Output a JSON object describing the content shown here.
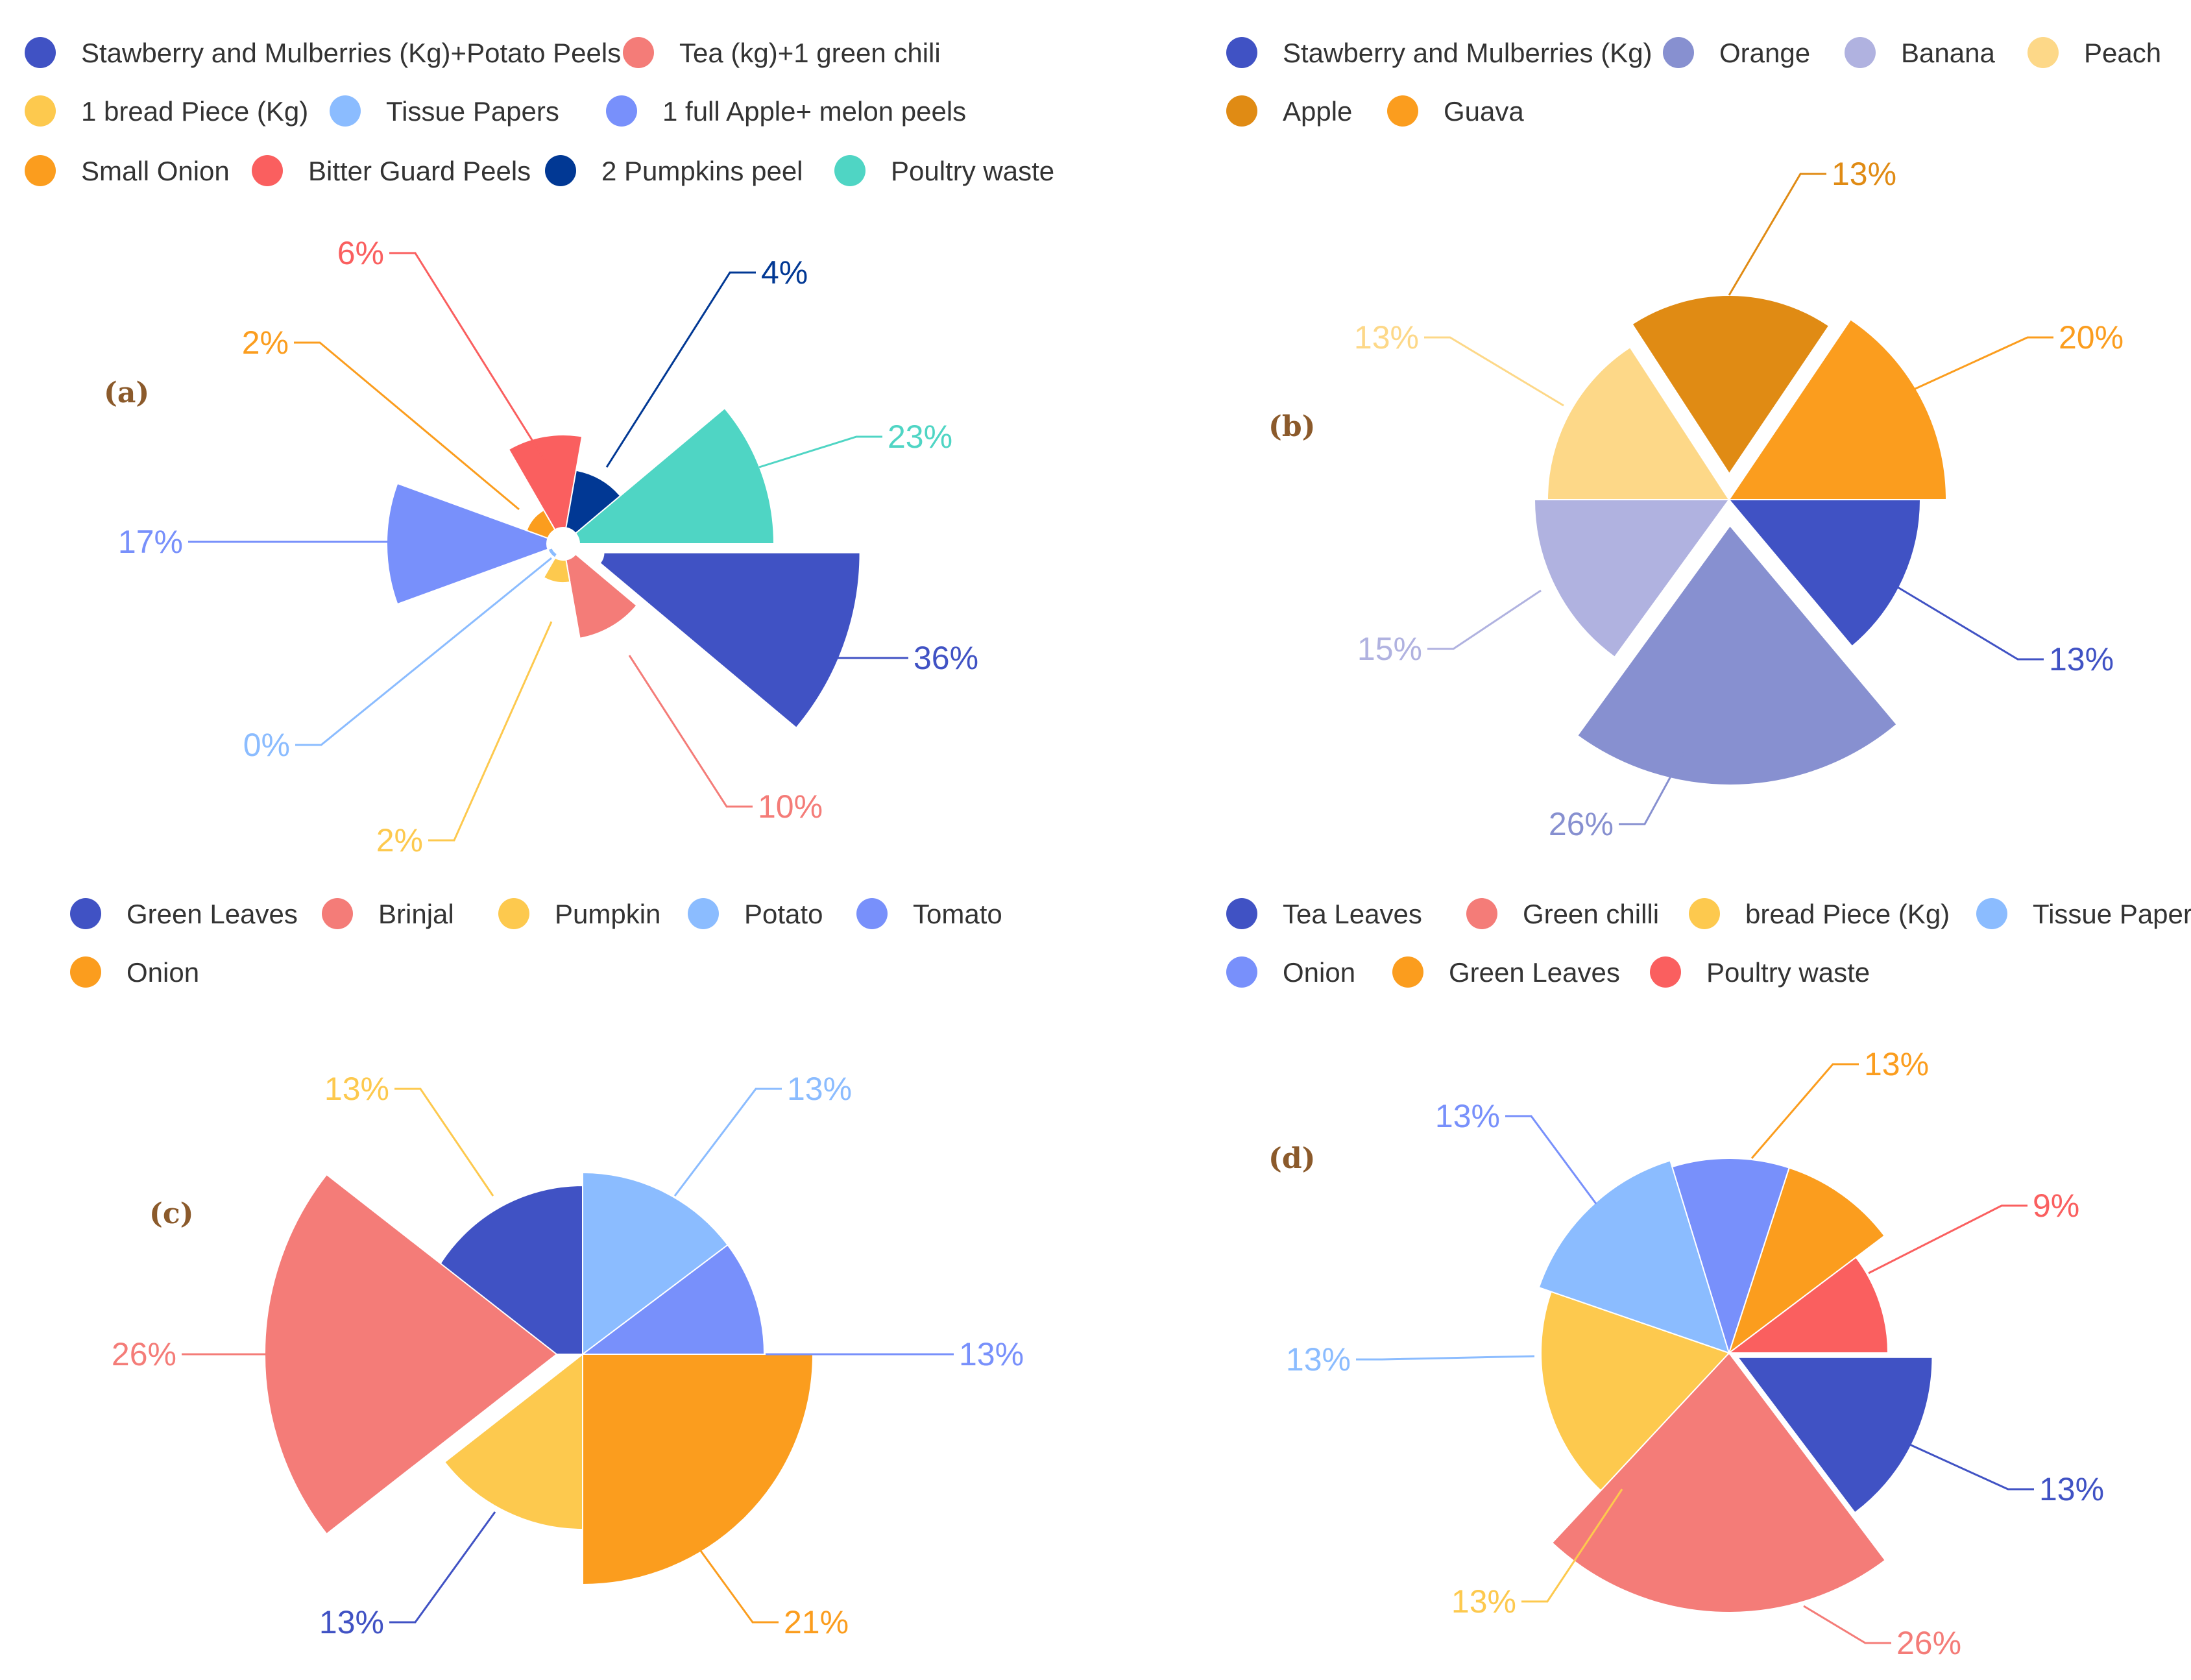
{
  "chart_data": [
    {
      "type": "pie",
      "variant": "nightingale-rose",
      "panel_label": "(a)",
      "legend": [
        "Stawberry and Mulberries (Kg)+Potato Peels",
        "Tea (kg)+1 green chili",
        "1 bread Piece (Kg)",
        "Tissue Papers",
        "1 full Apple+ melon peels",
        "Small Onion",
        "Bitter Guard Peels",
        "2 Pumpkins peel",
        "Poultry waste"
      ],
      "categories": [
        "Stawberry and Mulberries (Kg)+Potato Peels",
        "Tea (kg)+1 green chili",
        "1 bread Piece (Kg)",
        "Tissue Papers",
        "1 full Apple+ melon peels",
        "Small Onion",
        "Bitter Guard Peels",
        "2 Pumpkins peel",
        "Poultry waste"
      ],
      "values": [
        36,
        10,
        2,
        0,
        17,
        2,
        6,
        4,
        23
      ],
      "labels": [
        "36%",
        "10%",
        "2%",
        "0%",
        "17%",
        "2%",
        "6%",
        "4%",
        "23%"
      ],
      "colors": [
        "#4052c4",
        "#f47c78",
        "#fdc94e",
        "#8bbcff",
        "#7890fb",
        "#fb9d1e",
        "#fa5f5f",
        "#013894",
        "#4fd5c4"
      ]
    },
    {
      "type": "pie",
      "variant": "nightingale-rose",
      "panel_label": "(b)",
      "legend": [
        "Stawberry and Mulberries (Kg)",
        "Orange",
        "Banana",
        "Peach",
        "Apple",
        "Guava"
      ],
      "categories": [
        "Stawberry and Mulberries (Kg)",
        "Orange",
        "Banana",
        "Peach",
        "Apple",
        "Guava"
      ],
      "values": [
        13,
        26,
        15,
        13,
        13,
        20
      ],
      "labels": [
        "13%",
        "26%",
        "15%",
        "13%",
        "13%",
        "20%"
      ],
      "colors": [
        "#4052c4",
        "#8790d0",
        "#b0b2e0",
        "#fdd888",
        "#e08b14",
        "#fb9d1e"
      ]
    },
    {
      "type": "pie",
      "variant": "nightingale-rose",
      "panel_label": "(c)",
      "legend": [
        "Green Leaves",
        "Brinjal",
        "Pumpkin",
        "Potato",
        "Tomato",
        "Onion"
      ],
      "categories": [
        "Potato",
        "Tomato",
        "Onion",
        "Green Leaves",
        "Brinjal",
        "Pumpkin"
      ],
      "values": [
        13,
        13,
        21,
        13,
        26,
        13
      ],
      "labels": [
        "13%",
        "13%",
        "21%",
        "13%",
        "26%",
        "13%"
      ],
      "colors": [
        "#8bbcff",
        "#7890fb",
        "#fb9d1e",
        "#4052c4",
        "#f47c78",
        "#fdc94e"
      ]
    },
    {
      "type": "pie",
      "variant": "nightingale-rose",
      "panel_label": "(d)",
      "legend": [
        "Tea Leaves",
        "Green chilli",
        "bread Piece (Kg)",
        "Tissue Papers",
        "Onion",
        "Green Leaves",
        "Poultry waste"
      ],
      "categories": [
        "Tea Leaves",
        "Green chilli",
        "bread Piece (Kg)",
        "Tissue Papers",
        "Onion",
        "Green Leaves",
        "Poultry waste"
      ],
      "values": [
        13,
        26,
        13,
        13,
        13,
        13,
        9
      ],
      "labels": [
        "13%",
        "26%",
        "13%",
        "13%",
        "13%",
        "13%",
        "9%"
      ],
      "colors": [
        "#4052c4",
        "#f47c78",
        "#fdc94e",
        "#8bbcff",
        "#7890fb",
        "#fb9d1e",
        "#fa5f5f"
      ]
    }
  ]
}
